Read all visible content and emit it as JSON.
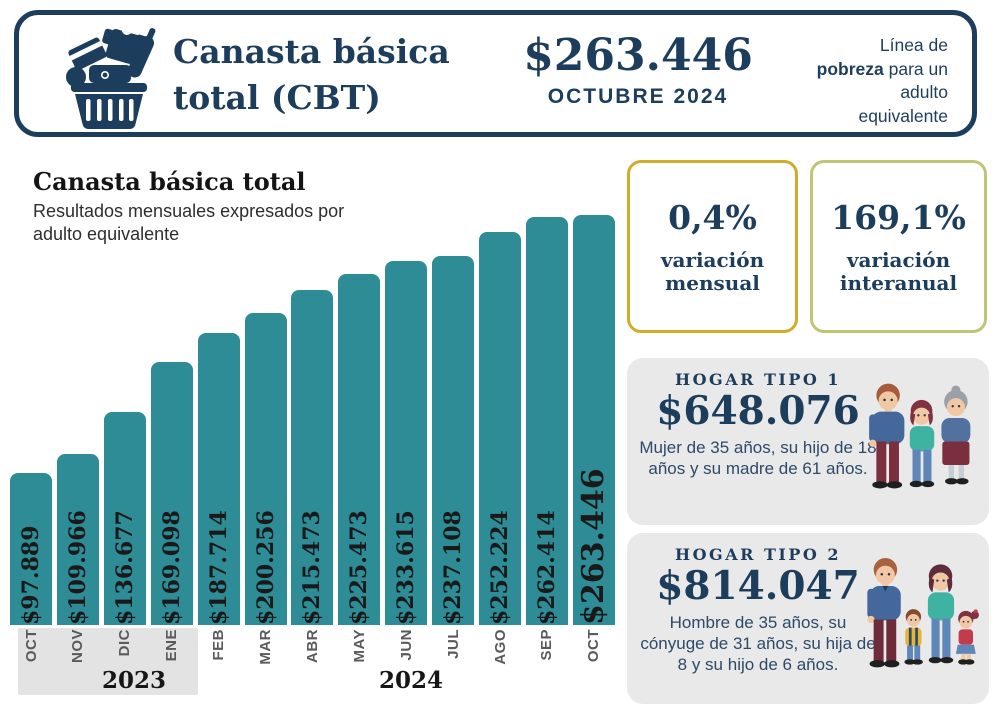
{
  "colors": {
    "navy": "#1d3d5c",
    "teal_bar": "#2e8c97",
    "gold_border": "#c9a62a",
    "olive_border": "#bfc476",
    "gray_strip": "#e3e3e3",
    "household_bg": "#e9e9e9",
    "bar_label_black": "#191919",
    "month_gray": "#5a5a5a"
  },
  "header": {
    "title_line1": "Canasta básica",
    "title_line2": "total (CBT)",
    "value": "$263.446",
    "period": "OCTUBRE 2024",
    "note_pre": "Línea de ",
    "note_bold": "pobreza",
    "note_post": " para un adulto equivalente",
    "icon": "basket-with-goods-icon"
  },
  "chart": {
    "title": "Canasta básica total",
    "subtitle": "Resultados mensuales expresados por adulto equivalente"
  },
  "chart_data": {
    "type": "bar",
    "categories": [
      "OCT",
      "NOV",
      "DIC",
      "ENE",
      "FEB",
      "MAR",
      "ABR",
      "MAY",
      "JUN",
      "JUL",
      "AGO",
      "SEP",
      "OCT"
    ],
    "values": [
      97889,
      109966,
      136677,
      169098,
      187714,
      200256,
      215473,
      225473,
      233615,
      237108,
      252224,
      262414,
      263446
    ],
    "bar_labels": [
      "$97.889",
      "$109.966",
      "$136.677",
      "$169.098",
      "$187.714",
      "$200.256",
      "$215.473",
      "$225.473",
      "$233.615",
      "$237.108",
      "$252.224",
      "$262.414",
      "$263.446"
    ],
    "year_labels": [
      "2023",
      "2024"
    ],
    "year_of_month": [
      "2023",
      "2023",
      "2023",
      "2024",
      "2024",
      "2024",
      "2024",
      "2024",
      "2024",
      "2024",
      "2024",
      "2024",
      "2024"
    ],
    "title": "Canasta básica total",
    "xlabel": "",
    "ylabel": "",
    "ylim": [
      0,
      263446
    ],
    "grid": false,
    "legend": false,
    "bar_color": "#2e8c97",
    "highlighted_last_bar": true
  },
  "stats": [
    {
      "value": "0,4%",
      "label": "variación mensual",
      "border_color": "#d0ac28"
    },
    {
      "value": "169,1%",
      "label": "variación interanual",
      "border_color": "#bfc476"
    }
  ],
  "households": [
    {
      "title": "HOGAR TIPO 1",
      "value": "$648.076",
      "description": "Mujer de 35 años, su hijo de 18 años y su madre de 61 años.",
      "illustration": "family-of-three"
    },
    {
      "title": "HOGAR TIPO 2",
      "value": "$814.047",
      "description": "Hombre de 35 años, su cónyuge de 31 años, su hija de 8 y su hijo de 6 años.",
      "illustration": "family-of-four"
    }
  ]
}
